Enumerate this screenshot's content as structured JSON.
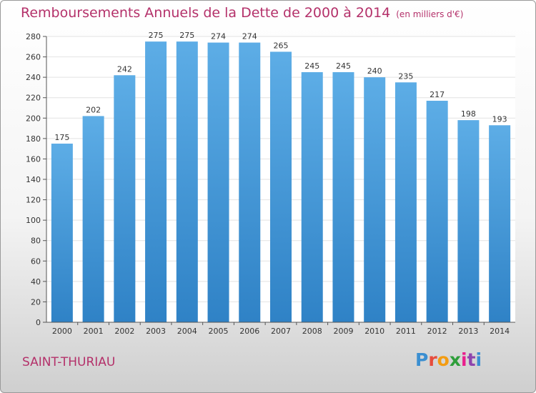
{
  "header": {
    "title": "Remboursements Annuels de la Dette de 2000 à 2014",
    "unit": "(en milliers d'€)"
  },
  "footer": {
    "place": "SAINT-THURIAU",
    "logo": "Proxiti",
    "logo_colors": [
      "#3b8fd1",
      "#e74c3c",
      "#f39c12",
      "#2e9e3a",
      "#e91e8c",
      "#8e44ad",
      "#3b8fd1"
    ]
  },
  "colors": {
    "bar_light": "#5dade6",
    "bar_dark": "#2f82c6",
    "grid": "#e2e2e2",
    "title": "#b4316a"
  },
  "chart_data": {
    "type": "bar",
    "categories": [
      "2000",
      "2001",
      "2002",
      "2003",
      "2004",
      "2005",
      "2006",
      "2007",
      "2008",
      "2009",
      "2010",
      "2011",
      "2012",
      "2013",
      "2014"
    ],
    "values": [
      175,
      202,
      242,
      275,
      275,
      274,
      274,
      265,
      245,
      245,
      240,
      235,
      217,
      198,
      193
    ],
    "ylim": [
      0,
      280
    ],
    "yticks": [
      0,
      20,
      40,
      60,
      80,
      100,
      120,
      140,
      160,
      180,
      200,
      220,
      240,
      260,
      280
    ],
    "grid": true,
    "legend": "none"
  }
}
